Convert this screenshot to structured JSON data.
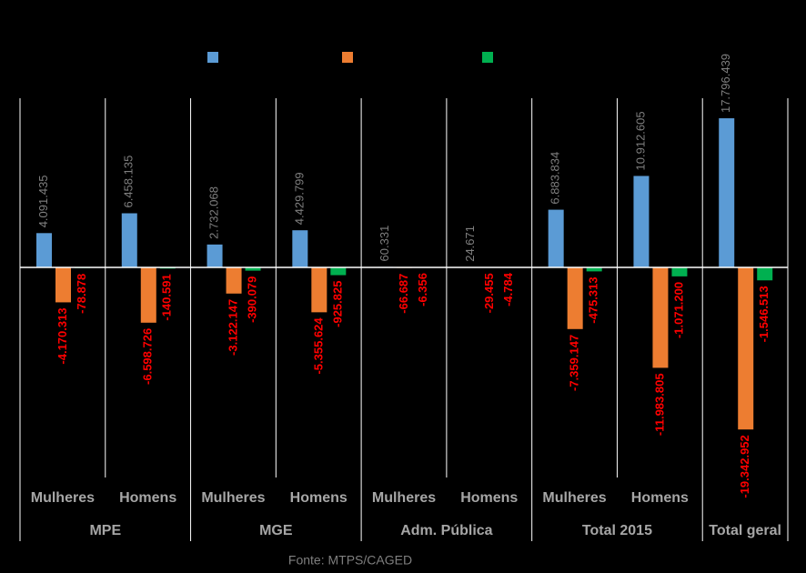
{
  "chart_data": {
    "type": "bar",
    "categories": [
      "Mulheres",
      "Homens",
      "Mulheres",
      "Homens",
      "Mulheres",
      "Homens",
      "Mulheres",
      "Homens",
      null
    ],
    "groups": [
      {
        "label": "MPE",
        "span": 2
      },
      {
        "label": "MGE",
        "span": 2
      },
      {
        "label": "Adm. Pública",
        "span": 2
      },
      {
        "label": "Total 2015",
        "span": 2
      },
      {
        "label": "Total geral",
        "span": 1
      }
    ],
    "series": [
      {
        "color": "#5b9bd5",
        "values": [
          4091435,
          6458135,
          2732068,
          4429799,
          60331,
          24671,
          6883834,
          10912605,
          17796439
        ],
        "value_labels": [
          "4.091.435",
          "6.458.135",
          "2.732.068",
          "4.429.799",
          "60.331",
          "24.671",
          "6.883.834",
          "10.912.605",
          "17.796.439"
        ]
      },
      {
        "color": "#ed7d31",
        "values": [
          -4170313,
          -6598726,
          -3122147,
          -5355624,
          -66687,
          -29455,
          -7359147,
          -11983805,
          -19342952
        ],
        "value_labels": [
          "-4.170.313",
          "-6.598.726",
          "-3.122.147",
          "-5.355.624",
          "-66.687",
          "-29.455",
          "-7.359.147",
          "-11.983.805",
          "-19.342.952"
        ]
      },
      {
        "color": "#00b050",
        "values": [
          -78878,
          -140591,
          -390079,
          -925825,
          -6356,
          -4784,
          -475313,
          -1071200,
          -1546513
        ],
        "value_labels": [
          "-78.878",
          "-140.591",
          "-390.079",
          "-925.825",
          "-6.356",
          "-4.784",
          "-475.313",
          "-1.071.200",
          "-1.546.513"
        ]
      }
    ],
    "source": "Fonte: MTPS/CAGED"
  }
}
